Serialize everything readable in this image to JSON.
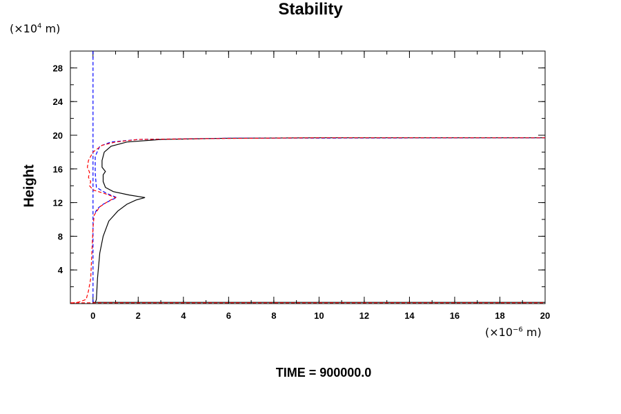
{
  "chart_data": {
    "type": "line",
    "title": "Stability",
    "ylabel": "Height",
    "y_units": {
      "prefix": "(×10",
      "exp": "4",
      "suffix": " m)"
    },
    "x_units": {
      "prefix": "(×10",
      "exp": "−6",
      "suffix": " m)"
    },
    "footer": "TIME = 900000.0",
    "xlim": [
      -1,
      20
    ],
    "ylim": [
      0,
      30
    ],
    "x_ticks": [
      "0",
      "2",
      "4",
      "6",
      "8",
      "10",
      "12",
      "14",
      "16",
      "18",
      "20"
    ],
    "y_ticks": [
      "4",
      "8",
      "12",
      "16",
      "20",
      "24",
      "28"
    ],
    "grid": false,
    "series": [
      {
        "color": "#000000",
        "dash": "solid",
        "points": [
          [
            0.1,
            0.1
          ],
          [
            0.15,
            0.5
          ],
          [
            0.2,
            3.0
          ],
          [
            0.3,
            6.0
          ],
          [
            0.45,
            8.0
          ],
          [
            0.7,
            9.8
          ],
          [
            1.1,
            11.0
          ],
          [
            1.5,
            11.8
          ],
          [
            1.9,
            12.3
          ],
          [
            2.3,
            12.6
          ],
          [
            1.6,
            12.9
          ],
          [
            0.9,
            13.3
          ],
          [
            0.55,
            13.8
          ],
          [
            0.45,
            14.5
          ],
          [
            0.45,
            15.3
          ],
          [
            0.55,
            15.7
          ],
          [
            0.4,
            16.2
          ],
          [
            0.4,
            17.0
          ],
          [
            0.5,
            18.0
          ],
          [
            0.8,
            18.7
          ],
          [
            1.5,
            19.2
          ],
          [
            3.0,
            19.5
          ],
          [
            6.0,
            19.65
          ],
          [
            10.0,
            19.7
          ],
          [
            20.0,
            19.7
          ]
        ]
      },
      {
        "color": "#0000ff",
        "dash": "dashed",
        "points": [
          [
            0.0,
            0.1
          ],
          [
            0.0,
            30.0
          ]
        ]
      },
      {
        "color": "#0000ff",
        "dash": "dashed",
        "points": [
          [
            0.1,
            10.8
          ],
          [
            0.2,
            11.3
          ],
          [
            0.45,
            11.8
          ],
          [
            0.8,
            12.3
          ],
          [
            1.05,
            12.6
          ],
          [
            0.6,
            13.1
          ],
          [
            0.15,
            13.8
          ],
          [
            0.1,
            15.5
          ],
          [
            0.1,
            17.5
          ],
          [
            0.3,
            18.7
          ],
          [
            0.8,
            19.2
          ],
          [
            2.0,
            19.5
          ],
          [
            6.0,
            19.65
          ],
          [
            20.0,
            19.7
          ]
        ]
      },
      {
        "color": "#ff0000",
        "dash": "dashed",
        "points": [
          [
            -0.95,
            0.05
          ],
          [
            -0.6,
            0.2
          ],
          [
            -0.3,
            0.5
          ],
          [
            -0.2,
            1.5
          ],
          [
            -0.1,
            3.0
          ],
          [
            -0.05,
            6.0
          ],
          [
            0.0,
            9.0
          ],
          [
            0.05,
            10.5
          ],
          [
            0.3,
            11.5
          ],
          [
            0.7,
            12.2
          ],
          [
            1.0,
            12.6
          ],
          [
            0.6,
            13.0
          ],
          [
            0.0,
            13.5
          ],
          [
            -0.15,
            14.0
          ],
          [
            -0.1,
            14.5
          ],
          [
            -0.2,
            15.0
          ],
          [
            -0.15,
            15.6
          ],
          [
            -0.25,
            16.2
          ],
          [
            -0.2,
            17.0
          ],
          [
            0.0,
            18.0
          ],
          [
            0.4,
            18.8
          ],
          [
            1.0,
            19.2
          ],
          [
            2.0,
            19.5
          ],
          [
            5.0,
            19.6
          ],
          [
            10.0,
            19.7
          ],
          [
            20.0,
            19.7
          ]
        ]
      },
      {
        "color": "#000000",
        "dash": "solid",
        "points": [
          [
            0.0,
            0.15
          ],
          [
            20.0,
            0.15
          ]
        ]
      },
      {
        "color": "#ff0000",
        "dash": "dashed",
        "points": [
          [
            -1.0,
            0.1
          ],
          [
            20.0,
            0.1
          ]
        ]
      }
    ]
  }
}
